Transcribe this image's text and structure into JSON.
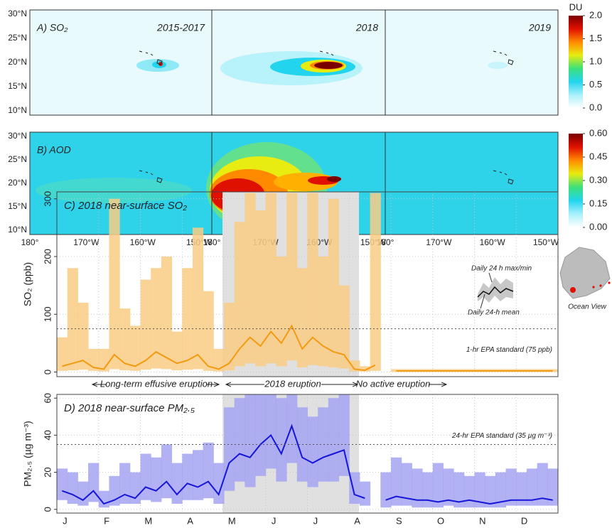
{
  "maps": {
    "lat_labels": [
      "30°N",
      "25°N",
      "20°N",
      "15°N",
      "10°N"
    ],
    "lon_labels": [
      "180°",
      "170°W",
      "160°W",
      "150°W"
    ],
    "colormap": [
      "#ffffff",
      "#a8f0fc",
      "#22d4ee",
      "#3ee07a",
      "#e8ec10",
      "#ff8a00",
      "#e01000",
      "#7a0000"
    ],
    "so2": {
      "label": "A) SO₂",
      "periods": [
        "2015-2017",
        "2018",
        "2019"
      ],
      "colorbar": {
        "unit": "DU",
        "lim": [
          0,
          2
        ],
        "ticks": [
          {
            "value": 2,
            "label": "2.0"
          },
          {
            "value": 1.5,
            "label": "1.5"
          },
          {
            "value": 1,
            "label": "1.0"
          },
          {
            "value": 0.5,
            "label": "0.5"
          },
          {
            "value": 0,
            "label": "0.0"
          }
        ]
      }
    },
    "aod": {
      "label": "B) AOD",
      "colorbar": {
        "lim": [
          0,
          0.6
        ],
        "ticks": [
          {
            "value": 0.6,
            "label": "0.60"
          },
          {
            "value": 0.45,
            "label": "0.45"
          },
          {
            "value": 0.3,
            "label": "0.30"
          },
          {
            "value": 0.15,
            "label": "0.15"
          },
          {
            "value": 0,
            "label": "0.00"
          }
        ]
      }
    }
  },
  "inset_map": {
    "label": "Ocean View"
  },
  "chart_data": [
    {
      "type": "line",
      "title": "C) 2018 near-surface SO₂",
      "y_label": "SO₂ (ppb)",
      "series": [
        {
          "name": "Daily 24 h max/min",
          "color": "#f9cd85",
          "values": [
            60,
            180,
            120,
            40,
            40,
            300,
            110,
            80,
            160,
            180,
            200,
            70,
            180,
            250,
            140,
            40,
            120,
            260,
            310,
            280,
            310,
            200,
            310,
            180,
            310,
            200,
            300,
            150,
            20,
            10,
            310,
            null,
            5,
            5,
            5,
            5,
            5,
            5,
            5,
            5,
            5,
            5,
            5,
            5,
            5,
            5,
            5,
            5
          ],
          "min": [
            2,
            3,
            4,
            2,
            1,
            5,
            3,
            2,
            4,
            6,
            5,
            3,
            4,
            5,
            2,
            1,
            3,
            10,
            15,
            10,
            15,
            10,
            20,
            8,
            12,
            10,
            8,
            6,
            1,
            1,
            2,
            null,
            0,
            0,
            0,
            0,
            0,
            0,
            0,
            0,
            0,
            0,
            0,
            0,
            0,
            0,
            0,
            0
          ]
        },
        {
          "name": "Daily 24-h mean",
          "color": "#f29a12",
          "values": [
            10,
            15,
            20,
            8,
            5,
            30,
            15,
            10,
            20,
            35,
            25,
            15,
            20,
            30,
            10,
            5,
            15,
            40,
            60,
            45,
            70,
            50,
            80,
            40,
            60,
            45,
            35,
            30,
            5,
            3,
            12,
            null,
            2,
            2,
            2,
            2,
            2,
            2,
            2,
            2,
            2,
            2,
            2,
            2,
            2,
            2,
            2,
            2
          ]
        }
      ],
      "ylim": [
        -8,
        312
      ],
      "yticks": [
        0,
        100,
        200,
        300
      ],
      "grid": true,
      "reference_line": {
        "value": 75,
        "label": "1-hr EPA standard (75 ppb)"
      },
      "annotations": [
        "Long-term effusive eruption",
        "2018 eruption",
        "No active eruption"
      ]
    },
    {
      "type": "line",
      "title": "D) 2018 near-surface PM₂.₅",
      "y_label": "PM₂.₅ (µg m⁻³)",
      "categories": [
        "J",
        null,
        null,
        null,
        "F",
        null,
        null,
        null,
        "M",
        null,
        null,
        null,
        "A",
        null,
        null,
        null,
        "M",
        null,
        null,
        null,
        "J",
        null,
        null,
        null,
        "J",
        null,
        null,
        null,
        "A",
        null,
        null,
        null,
        "S",
        null,
        null,
        null,
        "O",
        null,
        null,
        null,
        "N",
        null,
        null,
        null,
        "D",
        null,
        null,
        null
      ],
      "series": [
        {
          "color": "#a3a3f2",
          "values": [
            22,
            20,
            15,
            25,
            10,
            18,
            25,
            20,
            30,
            28,
            35,
            25,
            30,
            32,
            36,
            25,
            55,
            60,
            62,
            62,
            62,
            60,
            62,
            55,
            50,
            55,
            60,
            62,
            20,
            15,
            null,
            20,
            28,
            25,
            22,
            20,
            25,
            22,
            20,
            18,
            20,
            18,
            20,
            22,
            20,
            22,
            25,
            22
          ],
          "min": [
            5,
            3,
            2,
            4,
            1,
            2,
            3,
            3,
            5,
            4,
            6,
            3,
            5,
            5,
            6,
            3,
            10,
            15,
            12,
            18,
            22,
            15,
            25,
            15,
            12,
            15,
            15,
            18,
            3,
            2,
            null,
            1,
            2,
            2,
            1,
            1,
            1,
            2,
            1,
            1,
            1,
            1,
            1,
            2,
            2,
            2,
            2,
            2
          ]
        },
        {
          "color": "#1616d8",
          "values": [
            10,
            8,
            5,
            10,
            3,
            5,
            8,
            6,
            12,
            10,
            15,
            8,
            14,
            12,
            15,
            8,
            25,
            30,
            28,
            35,
            40,
            30,
            45,
            28,
            25,
            28,
            30,
            32,
            8,
            6,
            null,
            5,
            7,
            6,
            5,
            5,
            4,
            5,
            4,
            5,
            4,
            3,
            4,
            5,
            5,
            5,
            6,
            5
          ]
        }
      ],
      "ylim": [
        -2,
        62
      ],
      "yticks": [
        0,
        20,
        40,
        60
      ],
      "grid": true,
      "reference_line": {
        "value": 35,
        "label": "24-hr EPA standard (35 µg m⁻³)"
      }
    }
  ]
}
